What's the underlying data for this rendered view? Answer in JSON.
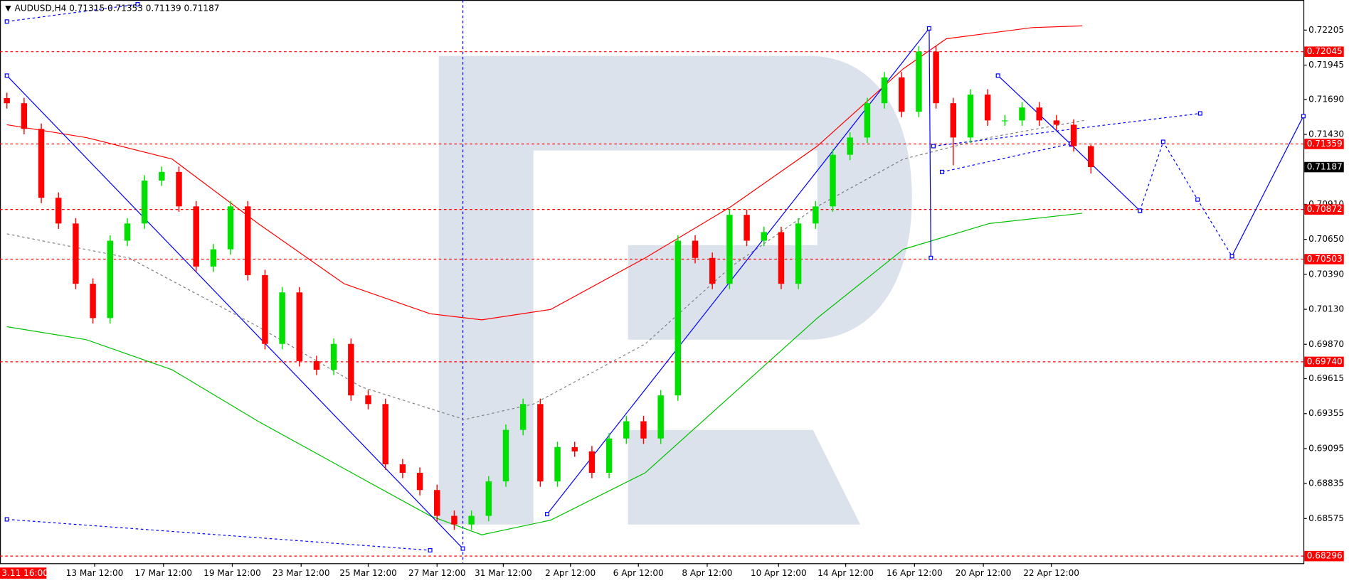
{
  "chart_data": {
    "type": "candlestick",
    "header": "AUDUSD,H4  0.71315 0.71353 0.71139 0.71187",
    "x": [
      0,
      1,
      2,
      3,
      4,
      5,
      6,
      7,
      8,
      9,
      10,
      11,
      12,
      13,
      14,
      15,
      16,
      17,
      18,
      19,
      20,
      21,
      22,
      23,
      24,
      25,
      26,
      27,
      28,
      29,
      30,
      31,
      32,
      33,
      34,
      35,
      36,
      37,
      38,
      39,
      40,
      41,
      42,
      43,
      44,
      45,
      46,
      47,
      48,
      49,
      50,
      51,
      52,
      53,
      54,
      55,
      56,
      57,
      58,
      59,
      60,
      61,
      62,
      63
    ],
    "open": [
      0.717,
      0.71662,
      0.71471,
      0.70959,
      0.70768,
      0.7032,
      0.70065,
      0.7064,
      0.70768,
      0.71087,
      0.71151,
      0.70895,
      0.70448,
      0.70576,
      0.70895,
      0.70384,
      0.69873,
      0.70256,
      0.69745,
      0.69681,
      0.69873,
      0.6949,
      0.69426,
      0.68978,
      0.68915,
      0.68787,
      0.68595,
      0.68531,
      0.68595,
      0.68851,
      0.69234,
      0.69426,
      0.68851,
      0.69106,
      0.69074,
      0.68915,
      0.6917,
      0.69298,
      0.6917,
      0.6949,
      0.7064,
      0.70512,
      0.7032,
      0.70832,
      0.7064,
      0.70704,
      0.7032,
      0.70768,
      0.70895,
      0.71279,
      0.71407,
      0.71662,
      0.71854,
      0.71598,
      0.72046,
      0.71662,
      0.71407,
      0.71726,
      0.71534,
      0.71534,
      0.7163,
      0.71534,
      0.71502,
      0.71343
    ],
    "high": [
      0.7174,
      0.71702,
      0.71511,
      0.70999,
      0.70808,
      0.7036,
      0.7068,
      0.70808,
      0.71127,
      0.71191,
      0.71191,
      0.70935,
      0.70616,
      0.70935,
      0.70935,
      0.70424,
      0.70296,
      0.70296,
      0.69785,
      0.69913,
      0.69913,
      0.6953,
      0.69466,
      0.69018,
      0.68955,
      0.68827,
      0.68635,
      0.68635,
      0.68891,
      0.69274,
      0.69466,
      0.69466,
      0.69146,
      0.69146,
      0.69114,
      0.6921,
      0.69338,
      0.69338,
      0.6953,
      0.7068,
      0.7068,
      0.70552,
      0.70872,
      0.70872,
      0.70744,
      0.70744,
      0.70808,
      0.70935,
      0.71319,
      0.71447,
      0.71702,
      0.71894,
      0.71894,
      0.72086,
      0.72086,
      0.71702,
      0.71766,
      0.71766,
      0.71574,
      0.7167,
      0.7167,
      0.71574,
      0.71542,
      0.71353
    ],
    "low": [
      0.71622,
      0.71431,
      0.70919,
      0.70728,
      0.7028,
      0.70025,
      0.70025,
      0.706,
      0.70728,
      0.71047,
      0.70855,
      0.70408,
      0.70408,
      0.70536,
      0.70344,
      0.69833,
      0.69833,
      0.69705,
      0.69641,
      0.69641,
      0.6945,
      0.69386,
      0.68938,
      0.68875,
      0.68747,
      0.68555,
      0.68491,
      0.68491,
      0.68555,
      0.68811,
      0.69194,
      0.68811,
      0.68811,
      0.69034,
      0.68875,
      0.68875,
      0.6913,
      0.6913,
      0.6913,
      0.6945,
      0.70472,
      0.7028,
      0.7028,
      0.706,
      0.706,
      0.7028,
      0.7028,
      0.70728,
      0.70855,
      0.71239,
      0.71367,
      0.71622,
      0.71558,
      0.71558,
      0.71622,
      0.712,
      0.71367,
      0.71494,
      0.71494,
      0.71494,
      0.71494,
      0.71462,
      0.71303,
      0.71139
    ],
    "close": [
      0.71662,
      0.71471,
      0.70959,
      0.70768,
      0.7032,
      0.70065,
      0.7064,
      0.70768,
      0.71087,
      0.71151,
      0.70895,
      0.70448,
      0.70576,
      0.70895,
      0.70384,
      0.69873,
      0.70256,
      0.69745,
      0.69681,
      0.69873,
      0.6949,
      0.69426,
      0.68978,
      0.68915,
      0.68787,
      0.68595,
      0.68531,
      0.68595,
      0.68851,
      0.69234,
      0.69426,
      0.68851,
      0.69106,
      0.69074,
      0.68915,
      0.6917,
      0.69298,
      0.6917,
      0.6949,
      0.7064,
      0.70512,
      0.7032,
      0.70832,
      0.7064,
      0.70704,
      0.7032,
      0.70768,
      0.70895,
      0.71279,
      0.71407,
      0.71662,
      0.71854,
      0.71598,
      0.72046,
      0.71662,
      0.71407,
      0.71726,
      0.71534,
      0.71534,
      0.7163,
      0.71534,
      0.71502,
      0.71343,
      0.71187
    ],
    "up_color": "#00e000",
    "down_color": "#ff0000",
    "xlim": [
      -0.4,
      75.35
    ],
    "ylim": [
      0.68243,
      0.72429
    ],
    "xticks": [
      {
        "value": 5.1,
        "label": "13 Mar 12:00"
      },
      {
        "value": 9.1,
        "label": "17 Mar 12:00"
      },
      {
        "value": 13.1,
        "label": "19 Mar 12:00"
      },
      {
        "value": 17.1,
        "label": "23 Mar 12:00"
      },
      {
        "value": 21,
        "label": "25 Mar 12:00"
      },
      {
        "value": 25,
        "label": "27 Mar 12:00"
      },
      {
        "value": 28.85,
        "label": "31 Mar 12:00"
      },
      {
        "value": 32.75,
        "label": "2 Apr 12:00"
      },
      {
        "value": 36.7,
        "label": "6 Apr 12:00"
      },
      {
        "value": 40.7,
        "label": "8 Apr 12:00"
      },
      {
        "value": 44.85,
        "label": "10 Apr 12:00"
      },
      {
        "value": 48.75,
        "label": "14 Apr 12:00"
      },
      {
        "value": 52.75,
        "label": "16 Apr 12:00"
      },
      {
        "value": 56.75,
        "label": "20 Apr 12:00"
      },
      {
        "value": 60.7,
        "label": "22 Apr 12:00"
      }
    ],
    "yticks": [
      0.72205,
      0.71945,
      {
        "value": 0.7169,
        "label": "0.71690"
      },
      {
        "value": 0.7143,
        "label": "0.71430"
      },
      {
        "value": 0.7091,
        "label": "0.70910"
      },
      {
        "value": 0.7065,
        "label": "0.70650"
      },
      {
        "value": 0.7039,
        "label": "0.70390"
      },
      {
        "value": 0.7013,
        "label": "0.70130"
      },
      {
        "value": 0.6987,
        "label": "0.69870"
      },
      0.69615,
      0.69355,
      0.69095,
      0.68835,
      0.68575
    ],
    "cursor_label": "3.11 16:00",
    "last_price": 0.71187,
    "levels": [
      0.72045,
      0.71359,
      0.70872,
      0.70503,
      {
        "value": 0.6974,
        "label": "0.69740"
      },
      0.68296
    ],
    "level_color": "#ff0000",
    "overlays": [
      {
        "color": "#ff0000",
        "dash": false,
        "x": [
          0,
          4.6,
          9.6,
          14.6,
          19.6,
          24.6,
          27.6,
          31.6,
          37.1,
          42.1,
          47.1,
          52.1,
          54.6,
          59.6,
          62.5
        ],
        "values": [
          0.71502,
          0.71407,
          0.71247,
          0.70768,
          0.7032,
          0.70097,
          0.70052,
          0.70129,
          0.70512,
          0.70895,
          0.71343,
          0.71918,
          0.72141,
          0.72224,
          0.72237
        ]
      },
      {
        "color": "#00c000",
        "dash": false,
        "x": [
          0,
          4.6,
          9.6,
          14.6,
          19.6,
          24.6,
          27.6,
          31.6,
          37.1,
          42.1,
          47.1,
          52.1,
          57.1,
          62.5
        ],
        "values": [
          0.70001,
          0.69905,
          0.69681,
          0.69298,
          0.68946,
          0.68595,
          0.68454,
          0.68563,
          0.68915,
          0.6949,
          0.70065,
          0.70576,
          0.70768,
          0.70844
        ]
      },
      {
        "color": "#808080",
        "dash": true,
        "x": [
          0,
          7.1,
          14.6,
          20.6,
          26.6,
          30.6,
          37.1,
          42.1,
          47.1,
          52.1,
          57.1,
          62.6
        ],
        "values": [
          0.70691,
          0.70512,
          0.70001,
          0.69553,
          0.69311,
          0.69426,
          0.69873,
          0.70448,
          0.70895,
          0.71247,
          0.71407,
          0.71534
        ]
      },
      {
        "color": "#0000ff",
        "dash": false,
        "x": [
          0,
          26.5
        ],
        "values": [
          0.71867,
          0.68352
        ]
      },
      {
        "color": "#0000ff",
        "dash": false,
        "x": [
          31.4,
          53.6,
          53.7
        ],
        "values": [
          0.68608,
          0.72218,
          0.70512
        ]
      },
      {
        "color": "#0000ff",
        "dash": false,
        "x": [
          57.6,
          61.85,
          65.85
        ],
        "values": [
          0.71867,
          0.71355,
          0.70863
        ]
      },
      {
        "color": "#0000ff",
        "dash": true,
        "x": [
          65.85,
          67.2,
          69.2,
          71.2
        ],
        "values": [
          0.70863,
          0.71375,
          0.70946,
          0.70525
        ]
      },
      {
        "color": "#0000ff",
        "dash": false,
        "x": [
          71.2,
          75.35
        ],
        "values": [
          0.70525,
          0.71566
        ]
      },
      {
        "color": "#0000ff",
        "dash": true,
        "x": [
          0,
          7.6
        ],
        "values": [
          0.72269,
          0.72397
        ]
      },
      {
        "color": "#0000ff",
        "dash": true,
        "x": [
          0,
          24.6
        ],
        "values": [
          0.68569,
          0.68339
        ]
      },
      {
        "color": "#0000ff",
        "dash": true,
        "x": [
          53.85,
          69.35
        ],
        "values": [
          0.71343,
          0.71586
        ]
      },
      {
        "color": "#0000ff",
        "dash": true,
        "x": [
          54.35,
          61.85
        ],
        "values": [
          0.71151,
          0.71362
        ]
      }
    ]
  }
}
